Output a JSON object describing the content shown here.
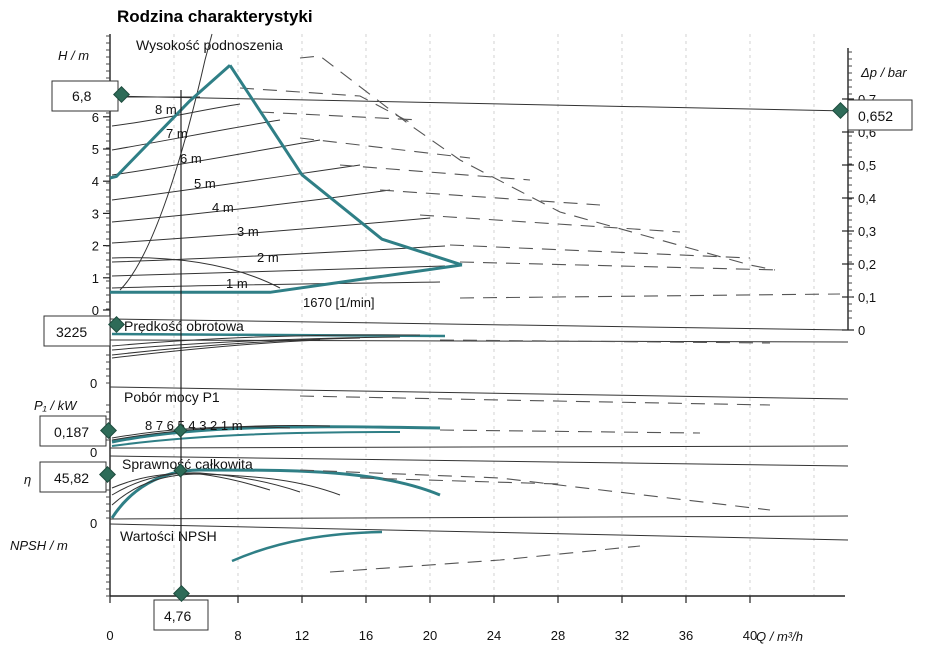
{
  "chart_data": {
    "type": "line",
    "title": "Rodzina charakterystyki",
    "xlabel": "Q / m³/h",
    "x_ticks": [
      "0",
      "8",
      "12",
      "16",
      "20",
      "24",
      "28",
      "32",
      "36",
      "40"
    ],
    "xlim": [
      0,
      45
    ],
    "operating_point": {
      "Q": "4,76"
    },
    "panels": [
      {
        "name": "Wysokość podnoszenia",
        "ylabel": "H / m",
        "ylim": [
          0,
          7.5
        ],
        "y_ticks": [
          "0",
          "1",
          "2",
          "3",
          "4",
          "5",
          "6"
        ],
        "y2label": "Δp / bar",
        "y2_ticks": [
          "0",
          "0,1",
          "0,2",
          "0,3",
          "0,4",
          "0,5",
          "0,6",
          "0,7"
        ],
        "readout_left": "6,8",
        "readout_right": "0,652",
        "curve_labels": [
          "8 m",
          "7 m",
          "6 m",
          "5 m",
          "4 m",
          "3 m",
          "2 m",
          "1 m"
        ],
        "speed_label": "1670 [1/min]",
        "series": [
          {
            "x": [
              0,
              0.4,
              5,
              7.5
            ],
            "values": [
              4.1,
              4.15,
              6.5,
              7.6
            ]
          },
          {
            "x": [
              7.5,
              12,
              17,
              22
            ],
            "values": [
              7.6,
              4.2,
              2.2,
              1.4
            ]
          },
          {
            "x": [
              0,
              10,
              22
            ],
            "values": [
              0.55,
              0.55,
              1.4
            ]
          }
        ]
      },
      {
        "name": "Prędkość obrotowa",
        "readout_left": "3225"
      },
      {
        "name": "Pobór mocy P1",
        "ylabel": "P₁ / kW",
        "y_ticks": [
          "0"
        ],
        "readout_left": "0,187",
        "curve_labels": [
          "8 7 6 5 4 3 2 1 m"
        ]
      },
      {
        "name": "Sprawność całkowita",
        "ylabel": "η",
        "y_ticks": [
          "0"
        ],
        "readout_left": "45,82"
      },
      {
        "name": "Wartości NPSH",
        "ylabel": "NPSH / m",
        "y_ticks": [
          "0"
        ]
      }
    ]
  }
}
